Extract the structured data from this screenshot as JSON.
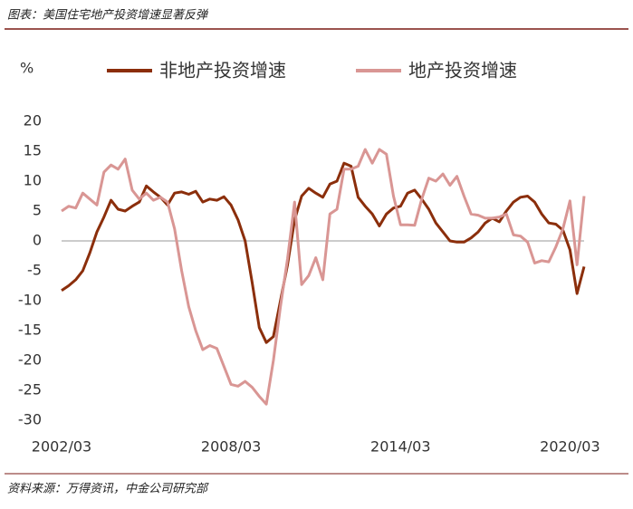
{
  "chart_data": {
    "type": "line",
    "title": "图表：美国住宅地产投资增速显著反弹",
    "source": "资料来源：万得资讯，中金公司研究部",
    "ylabel": "%",
    "categories": [
      "2002/03",
      null,
      null,
      null,
      null,
      null,
      null,
      null,
      null,
      null,
      null,
      null,
      null,
      null,
      null,
      null,
      null,
      null,
      null,
      null,
      null,
      null,
      null,
      null,
      "2008/03",
      null,
      null,
      null,
      null,
      null,
      null,
      null,
      null,
      null,
      null,
      null,
      null,
      null,
      null,
      null,
      null,
      null,
      null,
      null,
      null,
      null,
      null,
      null,
      "2014/03",
      null,
      null,
      null,
      null,
      null,
      null,
      null,
      null,
      null,
      null,
      null,
      null,
      null,
      null,
      null,
      null,
      null,
      null,
      null,
      null,
      null,
      null,
      null,
      "2020/03",
      null,
      null
    ],
    "series": [
      {
        "name": "非地产投资增速",
        "color": "#8b2e0b",
        "values": [
          -8.3,
          -7.5,
          -6.5,
          -5,
          -2,
          1.5,
          4,
          6.8,
          5.3,
          5,
          5.8,
          6.5,
          9.2,
          8.2,
          7.3,
          6,
          8,
          8.2,
          7.8,
          8.3,
          6.5,
          7,
          6.8,
          7.4,
          6,
          3.5,
          0,
          -7,
          -14.5,
          -17,
          -16,
          -10,
          -4,
          3.5,
          7.5,
          8.8,
          8,
          7.3,
          9.5,
          10,
          13,
          12.5,
          7.3,
          5.8,
          4.5,
          2.5,
          4.5,
          5.5,
          5.8,
          8,
          8.5,
          7,
          5.3,
          3,
          1.5,
          0,
          -0.2,
          -0.2,
          0.5,
          1.5,
          3,
          3.8,
          3.2,
          5,
          6.5,
          7.3,
          7.5,
          6.5,
          4.5,
          3,
          2.8,
          1.8,
          -1.5,
          -8.8,
          -4.3
        ]
      },
      {
        "name": "地产投资增速",
        "color": "#d99694",
        "values": [
          5,
          5.8,
          5.5,
          8,
          7,
          6,
          11.5,
          12.7,
          12,
          13.7,
          8.5,
          7,
          8,
          6.8,
          7.3,
          6.5,
          2,
          -5,
          -11,
          -15,
          -18.2,
          -17.5,
          -18,
          -21,
          -24,
          -24.3,
          -23.5,
          -24.5,
          -26,
          -27.3,
          -20,
          -11,
          -3,
          6.5,
          -7.3,
          -5.8,
          -2.8,
          -6.5,
          4.5,
          5.3,
          12,
          12,
          12.5,
          15.3,
          13,
          15.3,
          14.5,
          7.5,
          2.7,
          2.7,
          2.6,
          7,
          10.5,
          10,
          11.2,
          9.3,
          10.8,
          7.5,
          4.5,
          4.3,
          3.8,
          3.8,
          4,
          4.5,
          1,
          0.8,
          -0.2,
          -3.7,
          -3.3,
          -3.5,
          -1,
          2,
          6.7,
          -4,
          7.5
        ]
      }
    ],
    "ylim": [
      -30,
      20
    ],
    "yticks": [
      -30,
      -25,
      -20,
      -15,
      -10,
      -5,
      0,
      5,
      10,
      15,
      20
    ],
    "grid": false
  }
}
